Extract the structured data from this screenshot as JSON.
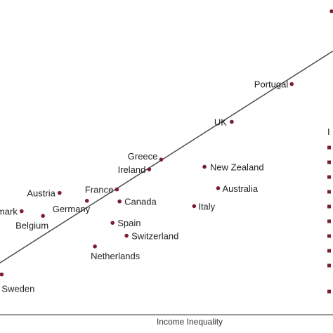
{
  "chart_data": {
    "type": "scatter",
    "xlabel": "Income Inequality",
    "ylabel": "",
    "xlim": [
      0,
      100
    ],
    "ylim": [
      0,
      100
    ],
    "legend_label": "I",
    "points": [
      {
        "label": "Portugal",
        "x": 87.6,
        "y": 73.3
      },
      {
        "label": "UK",
        "x": 69.6,
        "y": 61.3
      },
      {
        "label": "Greece",
        "x": 48.4,
        "y": 49.3
      },
      {
        "label": "Ireland",
        "x": 44.8,
        "y": 46.2
      },
      {
        "label": "New Zealand",
        "x": 61.4,
        "y": 47.0
      },
      {
        "label": "Australia",
        "x": 65.5,
        "y": 40.2
      },
      {
        "label": "France",
        "x": 35.1,
        "y": 39.8
      },
      {
        "label": "Austria",
        "x": 17.9,
        "y": 38.7
      },
      {
        "label": "Canada",
        "x": 35.9,
        "y": 36.0
      },
      {
        "label": "Germany",
        "x": 26.1,
        "y": 36.2
      },
      {
        "label": "Italy",
        "x": 58.3,
        "y": 34.5
      },
      {
        "label": "Denmark",
        "x": 6.5,
        "y": 32.9
      },
      {
        "label": "Belgium",
        "x": 12.9,
        "y": 31.4
      },
      {
        "label": "Spain",
        "x": 33.8,
        "y": 29.2
      },
      {
        "label": "Switzerland",
        "x": 38.0,
        "y": 25.1
      },
      {
        "label": "Netherlands",
        "x": 28.5,
        "y": 21.7
      },
      {
        "label": "Sweden",
        "x": 0.5,
        "y": 12.8
      }
    ],
    "trendline": {
      "x": [
        0,
        100
      ],
      "y": [
        16.5,
        83.8
      ]
    }
  }
}
